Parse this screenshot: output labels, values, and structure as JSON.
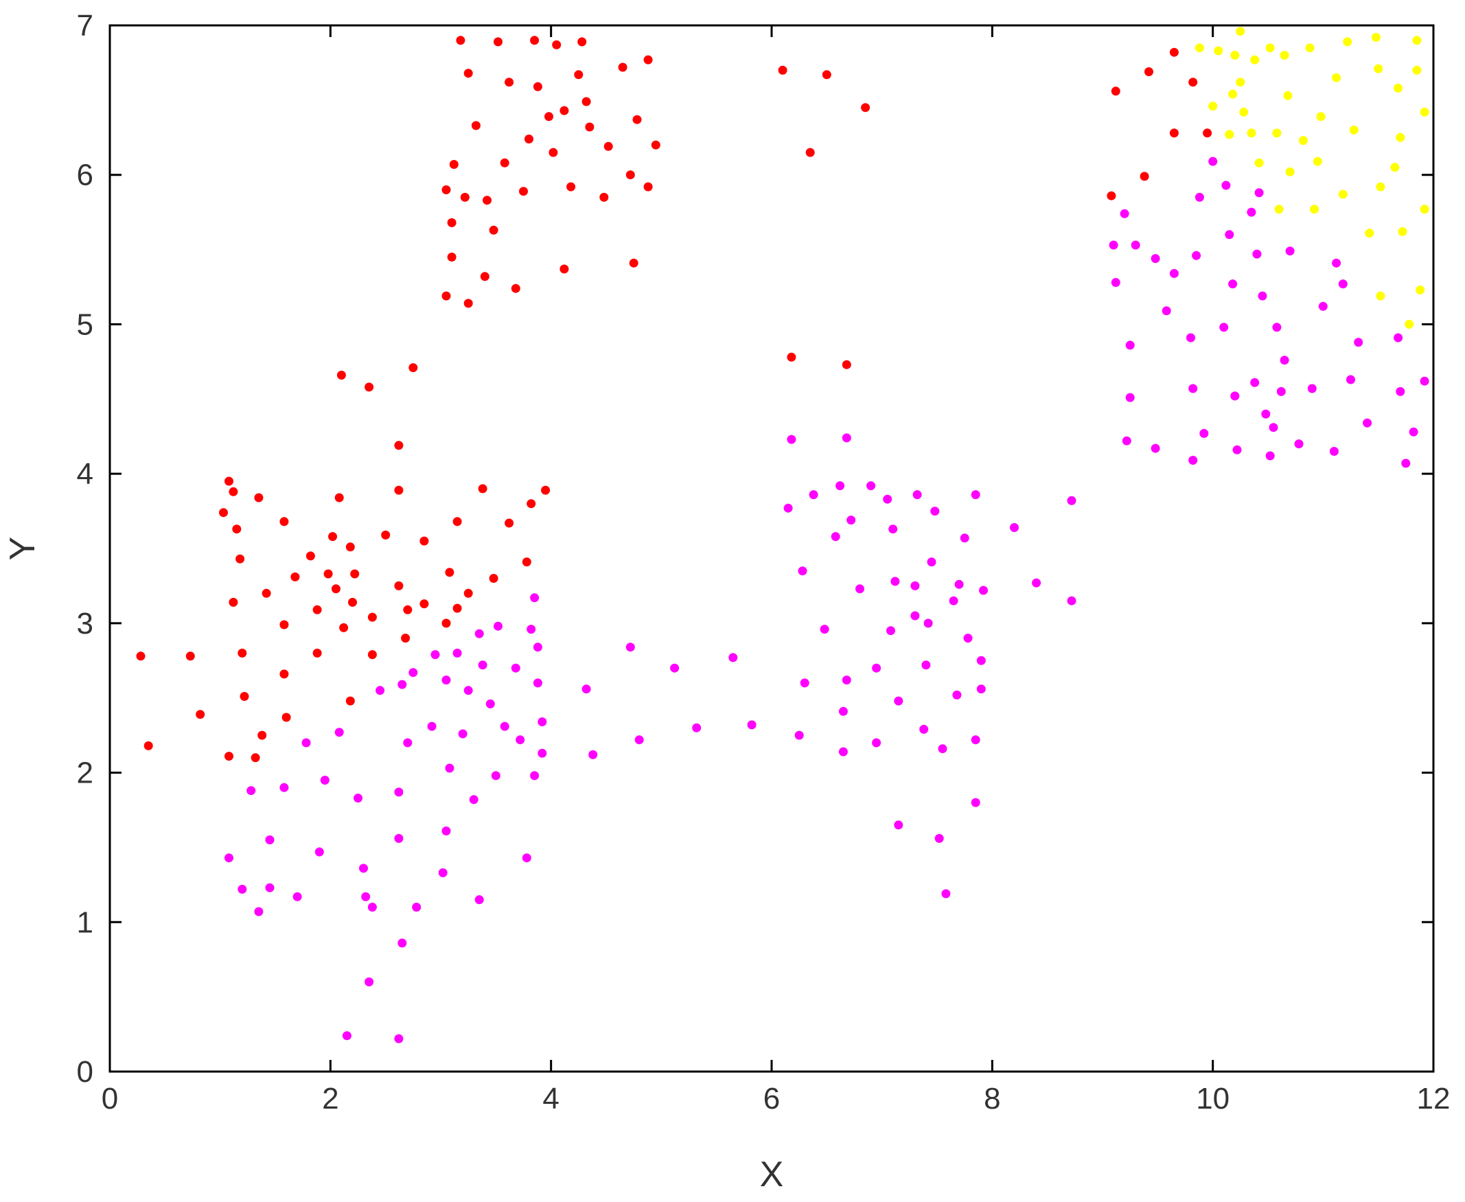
{
  "chart_data": {
    "type": "scatter",
    "xlabel": "X",
    "ylabel": "Y",
    "xlim": [
      0,
      12
    ],
    "ylim": [
      0,
      7
    ],
    "xticks": [
      0,
      2,
      4,
      6,
      8,
      10,
      12
    ],
    "yticks": [
      0,
      1,
      2,
      3,
      4,
      5,
      6,
      7
    ],
    "grid": false,
    "legend": "none",
    "series": [
      {
        "color": "#ff0000",
        "points": [
          [
            0.28,
            2.78
          ],
          [
            0.35,
            2.18
          ],
          [
            0.73,
            2.78
          ],
          [
            0.82,
            2.39
          ],
          [
            1.03,
            3.74
          ],
          [
            1.08,
            3.95
          ],
          [
            1.12,
            3.88
          ],
          [
            1.15,
            3.63
          ],
          [
            1.18,
            3.43
          ],
          [
            1.12,
            3.14
          ],
          [
            1.2,
            2.8
          ],
          [
            1.22,
            2.51
          ],
          [
            1.08,
            2.11
          ],
          [
            1.32,
            2.1
          ],
          [
            1.38,
            2.25
          ],
          [
            1.35,
            3.84
          ],
          [
            1.42,
            3.2
          ],
          [
            1.58,
            3.68
          ],
          [
            1.58,
            2.99
          ],
          [
            1.58,
            2.66
          ],
          [
            1.6,
            2.37
          ],
          [
            1.68,
            3.31
          ],
          [
            1.82,
            3.45
          ],
          [
            1.88,
            3.09
          ],
          [
            1.88,
            2.8
          ],
          [
            1.98,
            3.33
          ],
          [
            2.02,
            3.58
          ],
          [
            2.05,
            3.23
          ],
          [
            2.08,
            3.84
          ],
          [
            2.1,
            4.66
          ],
          [
            2.12,
            2.97
          ],
          [
            2.18,
            3.51
          ],
          [
            2.2,
            3.14
          ],
          [
            2.22,
            3.33
          ],
          [
            2.18,
            2.48
          ],
          [
            2.35,
            4.58
          ],
          [
            2.38,
            3.04
          ],
          [
            2.38,
            2.79
          ],
          [
            2.5,
            3.59
          ],
          [
            2.62,
            4.19
          ],
          [
            2.62,
            3.89
          ],
          [
            2.62,
            3.25
          ],
          [
            2.68,
            2.9
          ],
          [
            2.7,
            3.09
          ],
          [
            2.75,
            4.71
          ],
          [
            2.85,
            3.55
          ],
          [
            2.85,
            3.13
          ],
          [
            3.05,
            3.0
          ],
          [
            3.08,
            3.34
          ],
          [
            3.15,
            3.68
          ],
          [
            3.15,
            3.1
          ],
          [
            3.25,
            3.2
          ],
          [
            3.38,
            3.9
          ],
          [
            3.48,
            3.3
          ],
          [
            3.62,
            3.67
          ],
          [
            3.78,
            3.41
          ],
          [
            3.82,
            3.8
          ],
          [
            3.95,
            3.89
          ],
          [
            3.18,
            6.9
          ],
          [
            3.25,
            6.68
          ],
          [
            3.32,
            6.33
          ],
          [
            3.52,
            6.89
          ],
          [
            3.62,
            6.62
          ],
          [
            3.85,
            6.9
          ],
          [
            3.88,
            6.59
          ],
          [
            4.05,
            6.87
          ],
          [
            4.28,
            6.89
          ],
          [
            4.25,
            6.67
          ],
          [
            4.32,
            6.49
          ],
          [
            4.12,
            6.43
          ],
          [
            3.98,
            6.39
          ],
          [
            3.8,
            6.24
          ],
          [
            4.02,
            6.15
          ],
          [
            4.35,
            6.32
          ],
          [
            4.52,
            6.19
          ],
          [
            4.65,
            6.72
          ],
          [
            4.78,
            6.37
          ],
          [
            4.88,
            6.77
          ],
          [
            4.95,
            6.2
          ],
          [
            4.72,
            6.0
          ],
          [
            4.88,
            5.92
          ],
          [
            4.75,
            5.41
          ],
          [
            4.48,
            5.85
          ],
          [
            4.18,
            5.92
          ],
          [
            4.12,
            5.37
          ],
          [
            3.75,
            5.89
          ],
          [
            3.58,
            6.08
          ],
          [
            3.42,
            5.83
          ],
          [
            3.48,
            5.63
          ],
          [
            3.4,
            5.32
          ],
          [
            3.68,
            5.24
          ],
          [
            3.22,
            5.85
          ],
          [
            3.12,
            6.07
          ],
          [
            3.05,
            5.9
          ],
          [
            3.1,
            5.68
          ],
          [
            3.1,
            5.45
          ],
          [
            3.05,
            5.19
          ],
          [
            3.25,
            5.14
          ],
          [
            6.1,
            6.7
          ],
          [
            6.5,
            6.67
          ],
          [
            6.35,
            6.15
          ],
          [
            6.85,
            6.45
          ],
          [
            6.18,
            4.78
          ],
          [
            6.68,
            4.73
          ],
          [
            9.08,
            5.86
          ],
          [
            9.12,
            6.56
          ],
          [
            9.38,
            5.99
          ],
          [
            9.42,
            6.69
          ],
          [
            9.65,
            6.28
          ],
          [
            9.65,
            6.82
          ],
          [
            9.82,
            6.62
          ],
          [
            9.95,
            6.28
          ]
        ]
      },
      {
        "color": "#ff00ff",
        "points": [
          [
            1.08,
            1.43
          ],
          [
            1.2,
            1.22
          ],
          [
            1.28,
            1.88
          ],
          [
            1.35,
            1.07
          ],
          [
            1.45,
            1.23
          ],
          [
            1.45,
            1.55
          ],
          [
            1.58,
            1.9
          ],
          [
            1.7,
            1.17
          ],
          [
            1.78,
            2.2
          ],
          [
            1.9,
            1.47
          ],
          [
            1.95,
            1.95
          ],
          [
            2.08,
            2.27
          ],
          [
            2.15,
            0.24
          ],
          [
            2.25,
            1.83
          ],
          [
            2.3,
            1.36
          ],
          [
            2.32,
            1.17
          ],
          [
            2.35,
            0.6
          ],
          [
            2.38,
            1.1
          ],
          [
            2.45,
            2.55
          ],
          [
            2.62,
            1.87
          ],
          [
            2.62,
            1.56
          ],
          [
            2.62,
            0.22
          ],
          [
            2.65,
            0.86
          ],
          [
            2.65,
            2.59
          ],
          [
            2.7,
            2.2
          ],
          [
            2.75,
            2.67
          ],
          [
            2.78,
            1.1
          ],
          [
            2.92,
            2.31
          ],
          [
            2.95,
            2.79
          ],
          [
            3.02,
            1.33
          ],
          [
            3.05,
            1.61
          ],
          [
            3.05,
            2.62
          ],
          [
            3.08,
            2.03
          ],
          [
            3.15,
            2.8
          ],
          [
            3.2,
            2.26
          ],
          [
            3.25,
            2.55
          ],
          [
            3.3,
            1.82
          ],
          [
            3.35,
            2.93
          ],
          [
            3.35,
            1.15
          ],
          [
            3.38,
            2.72
          ],
          [
            3.45,
            2.46
          ],
          [
            3.5,
            1.98
          ],
          [
            3.52,
            2.98
          ],
          [
            3.58,
            2.31
          ],
          [
            3.68,
            2.7
          ],
          [
            3.72,
            2.22
          ],
          [
            3.78,
            1.43
          ],
          [
            3.82,
            2.96
          ],
          [
            3.85,
            3.17
          ],
          [
            3.85,
            1.98
          ],
          [
            3.88,
            2.84
          ],
          [
            3.88,
            2.6
          ],
          [
            3.92,
            2.34
          ],
          [
            3.92,
            2.13
          ],
          [
            4.32,
            2.56
          ],
          [
            4.38,
            2.12
          ],
          [
            4.72,
            2.84
          ],
          [
            4.8,
            2.22
          ],
          [
            5.12,
            2.7
          ],
          [
            5.32,
            2.3
          ],
          [
            5.65,
            2.77
          ],
          [
            5.82,
            2.32
          ],
          [
            6.15,
            3.77
          ],
          [
            6.18,
            4.23
          ],
          [
            6.25,
            2.25
          ],
          [
            6.28,
            3.35
          ],
          [
            6.3,
            2.6
          ],
          [
            6.38,
            3.86
          ],
          [
            6.48,
            2.96
          ],
          [
            6.58,
            3.58
          ],
          [
            6.62,
            3.92
          ],
          [
            6.65,
            2.41
          ],
          [
            6.65,
            2.14
          ],
          [
            6.68,
            4.24
          ],
          [
            6.68,
            2.62
          ],
          [
            6.72,
            3.69
          ],
          [
            6.8,
            3.23
          ],
          [
            6.9,
            3.92
          ],
          [
            6.95,
            2.7
          ],
          [
            6.95,
            2.2
          ],
          [
            7.05,
            3.83
          ],
          [
            7.08,
            2.95
          ],
          [
            7.1,
            3.63
          ],
          [
            7.12,
            3.28
          ],
          [
            7.15,
            2.48
          ],
          [
            7.15,
            1.65
          ],
          [
            7.3,
            3.25
          ],
          [
            7.32,
            3.86
          ],
          [
            7.3,
            3.05
          ],
          [
            7.38,
            2.29
          ],
          [
            7.4,
            2.72
          ],
          [
            7.42,
            3.0
          ],
          [
            7.45,
            3.41
          ],
          [
            7.48,
            3.75
          ],
          [
            7.52,
            1.56
          ],
          [
            7.55,
            2.16
          ],
          [
            7.58,
            1.19
          ],
          [
            7.65,
            3.15
          ],
          [
            7.68,
            2.52
          ],
          [
            7.7,
            3.26
          ],
          [
            7.75,
            3.57
          ],
          [
            7.78,
            2.9
          ],
          [
            7.85,
            3.86
          ],
          [
            7.85,
            2.22
          ],
          [
            7.85,
            1.8
          ],
          [
            7.9,
            2.75
          ],
          [
            7.9,
            2.56
          ],
          [
            7.92,
            3.22
          ],
          [
            8.2,
            3.64
          ],
          [
            8.4,
            3.27
          ],
          [
            8.72,
            3.82
          ],
          [
            8.72,
            3.15
          ],
          [
            9.1,
            5.53
          ],
          [
            9.12,
            5.28
          ],
          [
            9.2,
            5.74
          ],
          [
            9.22,
            4.22
          ],
          [
            9.25,
            4.86
          ],
          [
            9.25,
            4.51
          ],
          [
            9.3,
            5.53
          ],
          [
            9.48,
            5.44
          ],
          [
            9.48,
            4.17
          ],
          [
            9.58,
            5.09
          ],
          [
            9.65,
            5.34
          ],
          [
            9.8,
            4.91
          ],
          [
            9.82,
            4.57
          ],
          [
            9.82,
            4.09
          ],
          [
            9.85,
            5.46
          ],
          [
            9.88,
            5.85
          ],
          [
            9.92,
            4.27
          ],
          [
            10.0,
            6.09
          ],
          [
            10.1,
            4.98
          ],
          [
            10.12,
            5.93
          ],
          [
            10.15,
            5.6
          ],
          [
            10.18,
            5.27
          ],
          [
            10.2,
            4.52
          ],
          [
            10.22,
            4.16
          ],
          [
            10.35,
            5.75
          ],
          [
            10.38,
            4.61
          ],
          [
            10.4,
            5.47
          ],
          [
            10.42,
            5.88
          ],
          [
            10.45,
            5.19
          ],
          [
            10.48,
            4.4
          ],
          [
            10.52,
            4.12
          ],
          [
            10.55,
            4.31
          ],
          [
            10.58,
            4.98
          ],
          [
            10.62,
            4.55
          ],
          [
            10.65,
            4.76
          ],
          [
            10.7,
            5.49
          ],
          [
            10.78,
            4.2
          ],
          [
            10.9,
            4.57
          ],
          [
            11.0,
            5.12
          ],
          [
            11.1,
            4.15
          ],
          [
            11.12,
            5.41
          ],
          [
            11.18,
            5.27
          ],
          [
            11.25,
            4.63
          ],
          [
            11.32,
            4.88
          ],
          [
            11.4,
            4.34
          ],
          [
            11.68,
            4.91
          ],
          [
            11.7,
            4.55
          ],
          [
            11.75,
            4.07
          ],
          [
            11.82,
            4.28
          ],
          [
            11.92,
            4.62
          ]
        ]
      },
      {
        "color": "#ffff00",
        "points": [
          [
            9.88,
            6.85
          ],
          [
            10.0,
            6.46
          ],
          [
            10.05,
            6.83
          ],
          [
            10.15,
            6.27
          ],
          [
            10.18,
            6.54
          ],
          [
            10.2,
            6.8
          ],
          [
            10.25,
            6.96
          ],
          [
            10.25,
            6.62
          ],
          [
            10.28,
            6.42
          ],
          [
            10.35,
            6.28
          ],
          [
            10.38,
            6.77
          ],
          [
            10.42,
            6.08
          ],
          [
            10.52,
            6.85
          ],
          [
            10.58,
            6.28
          ],
          [
            10.6,
            5.77
          ],
          [
            10.65,
            6.8
          ],
          [
            10.68,
            6.53
          ],
          [
            10.7,
            6.02
          ],
          [
            10.82,
            6.23
          ],
          [
            10.88,
            6.85
          ],
          [
            10.92,
            5.77
          ],
          [
            10.95,
            6.09
          ],
          [
            10.98,
            6.39
          ],
          [
            11.12,
            6.65
          ],
          [
            11.18,
            5.87
          ],
          [
            11.22,
            6.89
          ],
          [
            11.28,
            6.3
          ],
          [
            11.42,
            5.61
          ],
          [
            11.48,
            6.92
          ],
          [
            11.5,
            6.71
          ],
          [
            11.52,
            5.92
          ],
          [
            11.52,
            5.19
          ],
          [
            11.65,
            6.05
          ],
          [
            11.68,
            6.58
          ],
          [
            11.7,
            6.25
          ],
          [
            11.72,
            5.62
          ],
          [
            11.78,
            5.0
          ],
          [
            11.85,
            6.9
          ],
          [
            11.85,
            6.7
          ],
          [
            11.88,
            5.23
          ],
          [
            11.92,
            6.42
          ],
          [
            11.92,
            5.77
          ]
        ]
      }
    ]
  }
}
